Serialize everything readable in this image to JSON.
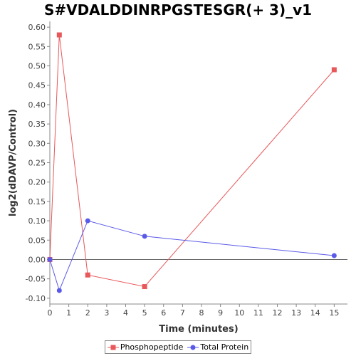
{
  "chart_data": {
    "type": "line",
    "title": "S#VDALDDINRPGSTESGR(+ 3)_v1",
    "xlabel": "Time (minutes)",
    "ylabel": "log2(dDAVP/Control)",
    "xlim": [
      0,
      15.7
    ],
    "ylim": [
      -0.115,
      0.615
    ],
    "xticks": [
      0,
      1,
      2,
      3,
      4,
      5,
      6,
      7,
      8,
      9,
      10,
      11,
      12,
      13,
      14,
      15
    ],
    "yticks": [
      -0.1,
      -0.05,
      0.0,
      0.05,
      0.1,
      0.15,
      0.2,
      0.25,
      0.3,
      0.35,
      0.4,
      0.45,
      0.5,
      0.55,
      0.6
    ],
    "zero_line": true,
    "grid": false,
    "legend_position": "bottom",
    "series": [
      {
        "name": "Phosphopeptide",
        "color": "#e8575a",
        "marker": "square",
        "x": [
          0,
          0.5,
          2,
          5,
          15
        ],
        "y": [
          0.0,
          0.58,
          -0.04,
          -0.07,
          0.49
        ]
      },
      {
        "name": "Total Protein",
        "color": "#5a5ae8",
        "marker": "circle",
        "x": [
          0,
          0.5,
          2,
          5,
          15
        ],
        "y": [
          0.0,
          -0.08,
          0.1,
          0.06,
          0.01
        ]
      }
    ]
  }
}
